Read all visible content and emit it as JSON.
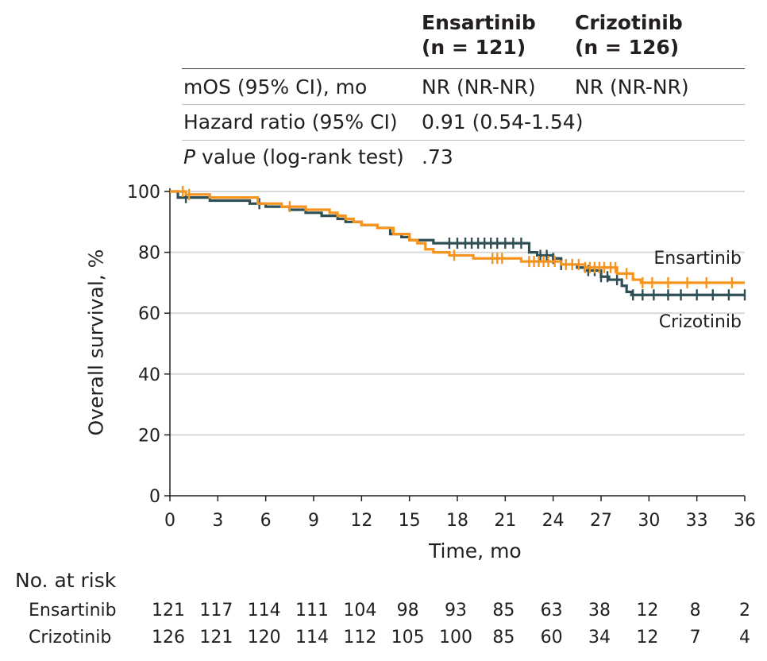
{
  "summary_table": {
    "col_headers": [
      {
        "arm": "Ensartinib",
        "n": "(n = 121)"
      },
      {
        "arm": "Crizotinib",
        "n": "(n = 126)"
      }
    ],
    "rows": [
      {
        "label": "mOS (95% CI), mo",
        "ens": "NR (NR-NR)",
        "criz": "NR (NR-NR)"
      },
      {
        "label": "Hazard ratio (95% CI)",
        "ens": "0.91 (0.54-1.54)",
        "criz": ""
      },
      {
        "label_italic": "P",
        "label_rest": " value (log-rank test)",
        "ens": ".73",
        "criz": ""
      }
    ]
  },
  "risk_table": {
    "title": "No. at risk",
    "rows": [
      {
        "name": "Ensartinib",
        "values": [
          "121",
          "117",
          "114",
          "111",
          "104",
          "98",
          "93",
          "85",
          "63",
          "38",
          "12",
          "8",
          "2"
        ]
      },
      {
        "name": "Crizotinib",
        "values": [
          "126",
          "121",
          "120",
          "114",
          "112",
          "105",
          "100",
          "85",
          "60",
          "34",
          "12",
          "7",
          "4"
        ]
      }
    ]
  },
  "colors": {
    "ensartinib": "#f7941d",
    "crizotinib": "#2f4f56",
    "grid": "#d9d9d9",
    "text": "#231f20"
  },
  "chart_data": {
    "type": "line",
    "subtype": "kaplan-meier",
    "xlabel": "Time, mo",
    "ylabel": "Overall survival, %",
    "xlim": [
      0,
      36
    ],
    "ylim": [
      0,
      100
    ],
    "xticks": [
      "0",
      "3",
      "6",
      "9",
      "12",
      "15",
      "18",
      "21",
      "24",
      "27",
      "30",
      "33",
      "36"
    ],
    "yticks": [
      "0",
      "20",
      "40",
      "60",
      "80",
      "100"
    ],
    "grid": "horizontal",
    "series": [
      {
        "name": "Ensartinib",
        "steps": [
          [
            0,
            100
          ],
          [
            1,
            99
          ],
          [
            2.5,
            98
          ],
          [
            5.5,
            96
          ],
          [
            7,
            95
          ],
          [
            8.5,
            94
          ],
          [
            10,
            93
          ],
          [
            10.5,
            92
          ],
          [
            11,
            91
          ],
          [
            11.5,
            90
          ],
          [
            12,
            89
          ],
          [
            13,
            88
          ],
          [
            14,
            86
          ],
          [
            15,
            84
          ],
          [
            15.5,
            83
          ],
          [
            16,
            81
          ],
          [
            16.5,
            80
          ],
          [
            17.5,
            79
          ],
          [
            19,
            78
          ],
          [
            22,
            77
          ],
          [
            24.5,
            76
          ],
          [
            26,
            75
          ],
          [
            28,
            73
          ],
          [
            29,
            71
          ],
          [
            29.5,
            70
          ],
          [
            36,
            70
          ]
        ],
        "censor_x": [
          0.8,
          1.2,
          7.5,
          17.8,
          20.2,
          20.5,
          20.8,
          22.5,
          22.8,
          23.1,
          23.4,
          23.7,
          24.1,
          24.8,
          25.2,
          25.6,
          26,
          26.3,
          26.6,
          26.9,
          27.2,
          27.6,
          27.9,
          28.6,
          29.6,
          30.2,
          31.2,
          32.4,
          33.6,
          35.2
        ],
        "label": "Ensartinib"
      },
      {
        "name": "Crizotinib",
        "steps": [
          [
            0,
            100
          ],
          [
            0.5,
            98
          ],
          [
            2.5,
            97
          ],
          [
            5,
            96
          ],
          [
            6,
            95
          ],
          [
            7.5,
            94
          ],
          [
            8.5,
            93
          ],
          [
            9.5,
            92
          ],
          [
            10.5,
            91
          ],
          [
            11,
            90
          ],
          [
            12,
            89
          ],
          [
            13,
            88
          ],
          [
            13.8,
            86
          ],
          [
            14.5,
            85
          ],
          [
            15,
            84
          ],
          [
            16.5,
            83
          ],
          [
            22.5,
            80
          ],
          [
            23,
            79
          ],
          [
            24,
            78
          ],
          [
            24.5,
            76
          ],
          [
            25.5,
            75
          ],
          [
            26,
            74
          ],
          [
            27,
            72
          ],
          [
            27.5,
            71
          ],
          [
            28.3,
            69
          ],
          [
            28.6,
            67
          ],
          [
            28.9,
            66
          ],
          [
            36,
            66
          ]
        ],
        "censor_x": [
          1,
          5.6,
          17.5,
          18,
          18.5,
          18.9,
          19.3,
          19.7,
          20.1,
          20.5,
          21,
          21.5,
          22,
          23.2,
          23.6,
          24,
          24.5,
          25.2,
          26.2,
          26.6,
          27,
          27.4,
          28,
          29,
          29.6,
          30.3,
          31.2,
          32,
          33,
          34,
          35,
          36
        ],
        "label": "Crizotinib"
      }
    ]
  }
}
